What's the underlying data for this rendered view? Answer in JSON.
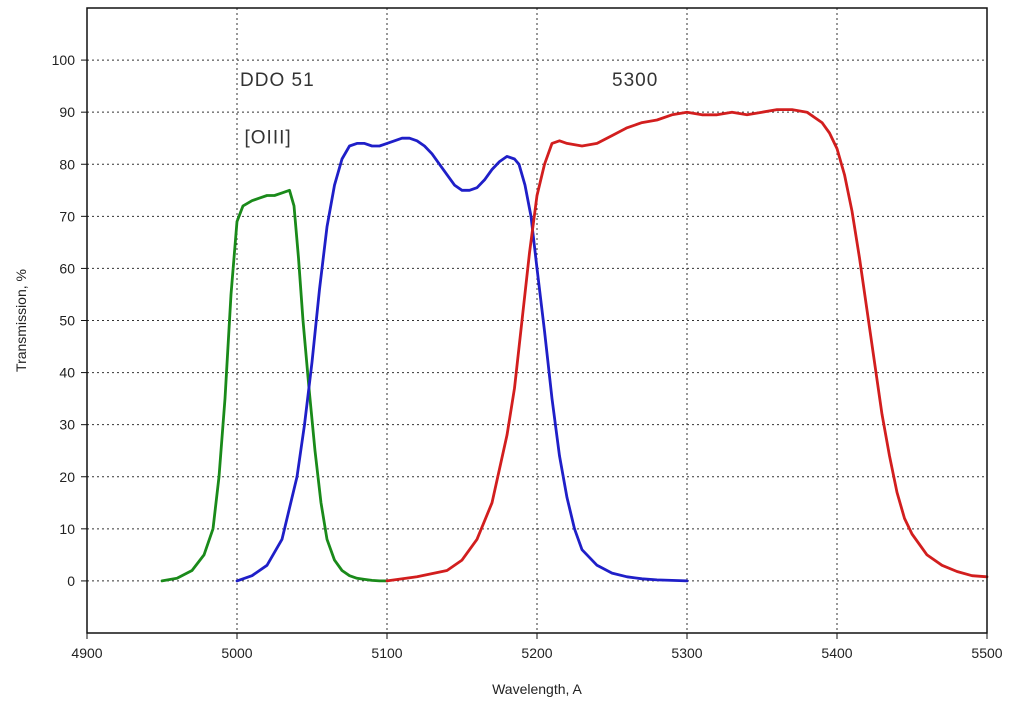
{
  "chart_data": {
    "type": "line",
    "title": "",
    "xlabel": "Wavelength, A",
    "ylabel": "Transmission, %",
    "xlim": [
      4900,
      5500
    ],
    "ylim": [
      -10,
      110
    ],
    "xticks": [
      4900,
      5000,
      5100,
      5200,
      5300,
      5400,
      5500
    ],
    "yticks": [
      0,
      10,
      20,
      30,
      40,
      50,
      60,
      70,
      80,
      90,
      100
    ],
    "xtick_labels": [
      "4900",
      "5000",
      "5100",
      "5200",
      "5300",
      "5400",
      "5500"
    ],
    "ytick_labels": [
      "0",
      "10",
      "20",
      "30",
      "40",
      "50",
      "60",
      "70",
      "80",
      "90",
      "100"
    ],
    "grid": true,
    "legend": "none",
    "annotations": [
      {
        "text": "[OIII]",
        "x": 5005,
        "y": 84
      },
      {
        "text": "DDO 51",
        "x": 5002,
        "y": 95
      },
      {
        "text": "5300",
        "x": 5250,
        "y": 95
      }
    ],
    "series": [
      {
        "color": "#1a8a1a",
        "x": [
          4950,
          4960,
          4970,
          4978,
          4984,
          4988,
          4992,
          4996,
          5000,
          5004,
          5010,
          5015,
          5020,
          5025,
          5030,
          5035,
          5038,
          5041,
          5044,
          5048,
          5052,
          5056,
          5060,
          5065,
          5070,
          5075,
          5080,
          5085,
          5090,
          5095,
          5100
        ],
        "y": [
          0,
          0.5,
          2,
          5,
          10,
          20,
          35,
          55,
          69,
          72,
          73,
          73.5,
          74,
          74,
          74.5,
          75,
          72,
          62,
          50,
          37,
          25,
          15,
          8,
          4,
          2,
          1,
          0.5,
          0.3,
          0.1,
          0,
          0
        ]
      },
      {
        "color": "#1f1fc8",
        "x": [
          5000,
          5010,
          5020,
          5030,
          5040,
          5045,
          5050,
          5055,
          5060,
          5065,
          5070,
          5075,
          5080,
          5085,
          5090,
          5095,
          5100,
          5105,
          5110,
          5115,
          5120,
          5125,
          5130,
          5135,
          5140,
          5145,
          5150,
          5155,
          5160,
          5165,
          5170,
          5175,
          5180,
          5185,
          5188,
          5192,
          5196,
          5200,
          5205,
          5210,
          5215,
          5220,
          5225,
          5230,
          5240,
          5250,
          5260,
          5270,
          5280,
          5290,
          5300
        ],
        "y": [
          0,
          1,
          3,
          8,
          20,
          30,
          42,
          56,
          68,
          76,
          81,
          83.5,
          84,
          84,
          83.5,
          83.5,
          84,
          84.5,
          85,
          85,
          84.5,
          83.5,
          82,
          80,
          78,
          76,
          75,
          75,
          75.5,
          77,
          79,
          80.5,
          81.5,
          81,
          80,
          76,
          70,
          60,
          48,
          35,
          24,
          16,
          10,
          6,
          3,
          1.5,
          0.8,
          0.4,
          0.2,
          0.1,
          0
        ]
      },
      {
        "color": "#d21e1e",
        "x": [
          5100,
          5120,
          5140,
          5150,
          5160,
          5170,
          5180,
          5185,
          5190,
          5195,
          5200,
          5205,
          5210,
          5215,
          5220,
          5230,
          5240,
          5250,
          5260,
          5270,
          5280,
          5290,
          5300,
          5310,
          5320,
          5330,
          5340,
          5350,
          5360,
          5370,
          5380,
          5390,
          5395,
          5400,
          5405,
          5410,
          5415,
          5420,
          5425,
          5430,
          5435,
          5440,
          5445,
          5450,
          5460,
          5470,
          5480,
          5490,
          5500
        ],
        "y": [
          0,
          0.8,
          2,
          4,
          8,
          15,
          28,
          37,
          50,
          63,
          74,
          80,
          84,
          84.5,
          84,
          83.5,
          84,
          85.5,
          87,
          88,
          88.5,
          89.5,
          90,
          89.5,
          89.5,
          90,
          89.5,
          90,
          90.5,
          90.5,
          90,
          88,
          86,
          83,
          78,
          71,
          62,
          52,
          42,
          32,
          24,
          17,
          12,
          9,
          5,
          3,
          1.8,
          1,
          0.8
        ]
      }
    ]
  }
}
